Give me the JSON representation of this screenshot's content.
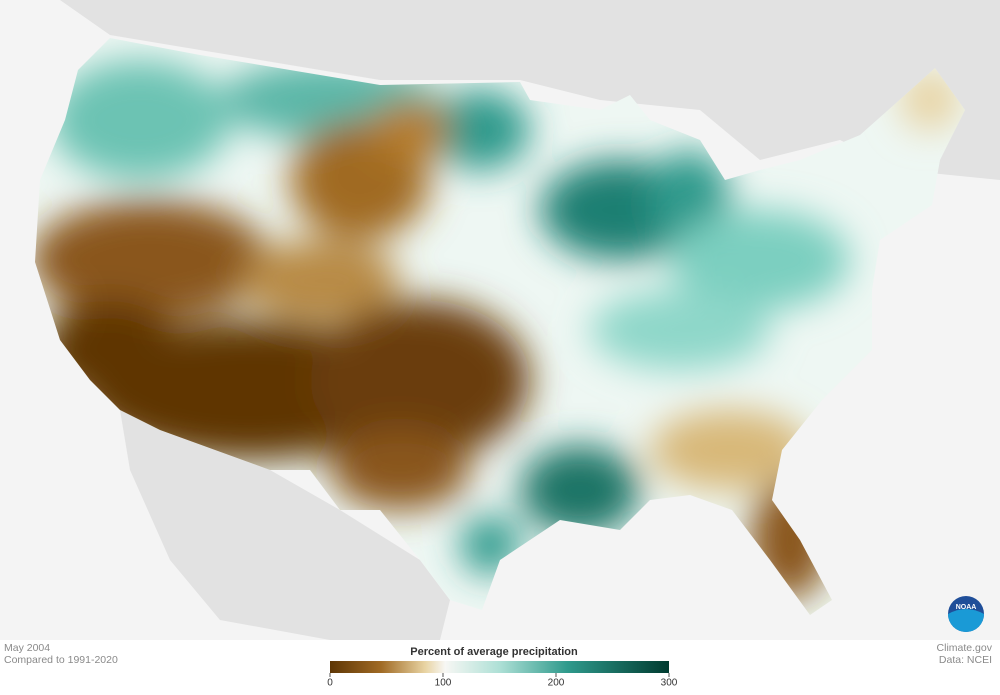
{
  "caption": {
    "date": "May 2004",
    "baseline": "Compared to 1991-2020"
  },
  "credit": {
    "site": "Climate.gov",
    "source": "Data: NCEI",
    "logo": "NOAA"
  },
  "legend": {
    "title": "Percent of average precipitation",
    "range": [
      0,
      300
    ],
    "ticks": [
      0,
      100,
      200,
      300
    ]
  }
}
